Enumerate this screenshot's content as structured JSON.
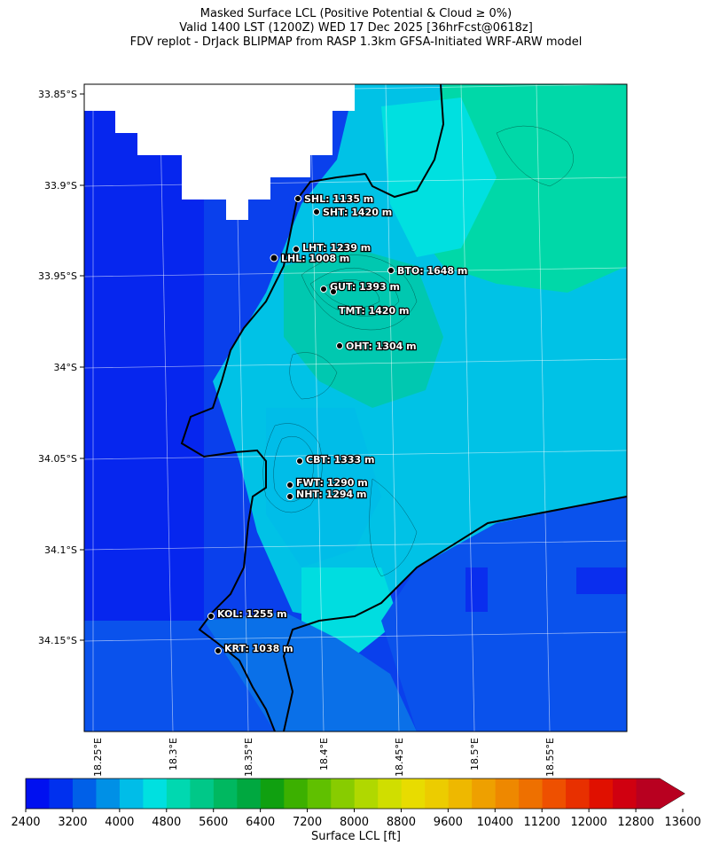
{
  "title": {
    "line1": "Masked Surface LCL (Positive Potential & Cloud ≥ 0%)",
    "line2": "Valid 1400 LST (1200Z) WED 17 Dec 2025 [36hrFcst@0618z]",
    "line3": "FDV replot - DrJack BLIPMAP from RASP 1.3km GFSA-Initiated WRF-ARW model"
  },
  "lat_labels": [
    "33.85°S",
    "33.9°S",
    "33.95°S",
    "34°S",
    "34.05°S",
    "34.1°S",
    "34.15°S"
  ],
  "lon_labels": [
    "18.25°E",
    "18.3°E",
    "18.35°E",
    "18.4°E",
    "18.45°E",
    "18.5°E",
    "18.55°E"
  ],
  "sites": [
    {
      "id": "SHL",
      "label": "SHL: 1135 m",
      "value_m": 1135
    },
    {
      "id": "SHT",
      "label": "SHT: 1420 m",
      "value_m": 1420
    },
    {
      "id": "LHT",
      "label": "LHT: 1239 m",
      "value_m": 1239
    },
    {
      "id": "LHL",
      "label": "LHL: 1008 m",
      "value_m": 1008
    },
    {
      "id": "BTO",
      "label": "BTO: 1648 m",
      "value_m": 1648
    },
    {
      "id": "GUT",
      "label": "GUT: 1393 m",
      "value_m": 1393
    },
    {
      "id": "TMT",
      "label": "TMT: 1420 m",
      "value_m": 1420
    },
    {
      "id": "OHT",
      "label": "OHT: 1304 m",
      "value_m": 1304
    },
    {
      "id": "CBT",
      "label": "CBT: 1333 m",
      "value_m": 1333
    },
    {
      "id": "FWT",
      "label": "FWT: 1290 m",
      "value_m": 1290
    },
    {
      "id": "NHT",
      "label": "NHT: 1294 m",
      "value_m": 1294
    },
    {
      "id": "KOL",
      "label": "KOL: 1255 m",
      "value_m": 1255
    },
    {
      "id": "KRT",
      "label": "KRT: 1038 m",
      "value_m": 1038
    }
  ],
  "colorbar": {
    "title": "Surface LCL [ft]",
    "ticks": [
      "2400",
      "3200",
      "4000",
      "4800",
      "5600",
      "6400",
      "7200",
      "8000",
      "8800",
      "9600",
      "10400",
      "11200",
      "12000",
      "12800",
      "13600"
    ],
    "colors": [
      "#0010f0",
      "#0030ee",
      "#0060e8",
      "#0090e6",
      "#00bde8",
      "#00e0e0",
      "#00d8b0",
      "#00c888",
      "#00b860",
      "#00a840",
      "#10a010",
      "#3cb000",
      "#60c000",
      "#88cc00",
      "#b0d800",
      "#d0de00",
      "#e8dc00",
      "#eccc00",
      "#eeb800",
      "#eea000",
      "#ee8800",
      "#ee7000",
      "#ee5000",
      "#e83000",
      "#e01000",
      "#d00010",
      "#b80020"
    ]
  }
}
